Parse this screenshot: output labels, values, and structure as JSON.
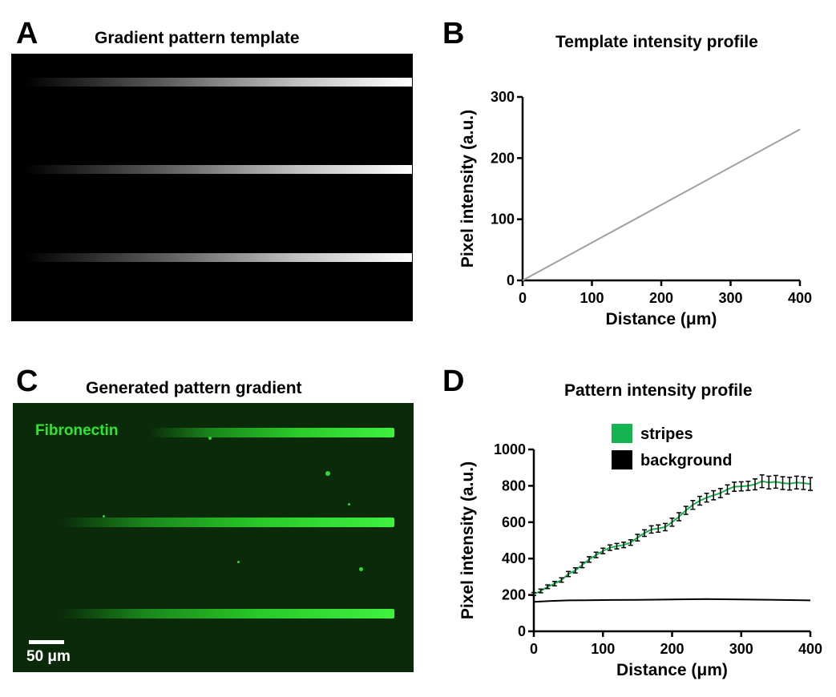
{
  "panelA": {
    "letter": "A",
    "title": "Gradient pattern template",
    "stripes": 3
  },
  "panelB": {
    "letter": "B",
    "title": "Template intensity profile"
  },
  "panelC": {
    "letter": "C",
    "title": "Generated pattern gradient",
    "stain_label": "Fibronectin",
    "scale_label": "50 μm",
    "stripes": 3,
    "colors": {
      "stain": "#2ee82e",
      "background": "#0a2a0a"
    }
  },
  "panelD": {
    "letter": "D",
    "title": "Pattern intensity profile"
  },
  "chart_data": [
    {
      "type": "line",
      "title": "Template intensity profile",
      "xlabel": "Distance (μm)",
      "ylabel": "Pixel intensity (a.u.)",
      "xlim": [
        0,
        400
      ],
      "ylim": [
        0,
        300
      ],
      "xticks": [
        0,
        100,
        200,
        300,
        400
      ],
      "yticks": [
        0,
        100,
        200,
        300
      ],
      "series": [
        {
          "color": "#a0a0a0",
          "x": [
            0,
            400
          ],
          "y": [
            0,
            247
          ]
        }
      ]
    },
    {
      "type": "line",
      "title": "Pattern intensity profile",
      "xlabel": "Distance (μm)",
      "ylabel": "Pixel intensity (a.u.)",
      "xlim": [
        0,
        400
      ],
      "ylim": [
        0,
        1000
      ],
      "xticks": [
        0,
        100,
        200,
        300,
        400
      ],
      "yticks": [
        0,
        200,
        400,
        600,
        800,
        1000
      ],
      "legend_position": "top-right",
      "series": [
        {
          "name": "stripes",
          "color": "#14b450",
          "x": [
            0,
            10,
            20,
            30,
            40,
            50,
            60,
            70,
            80,
            90,
            100,
            110,
            120,
            130,
            140,
            150,
            160,
            170,
            180,
            190,
            200,
            210,
            220,
            230,
            240,
            250,
            260,
            270,
            280,
            290,
            300,
            310,
            320,
            330,
            340,
            350,
            360,
            370,
            380,
            390,
            400
          ],
          "y": [
            205,
            222,
            245,
            262,
            282,
            315,
            335,
            365,
            395,
            420,
            442,
            460,
            468,
            475,
            488,
            515,
            540,
            560,
            565,
            573,
            600,
            630,
            665,
            695,
            718,
            735,
            748,
            760,
            780,
            795,
            797,
            800,
            808,
            825,
            818,
            822,
            815,
            812,
            818,
            815,
            810
          ],
          "error": [
            8,
            10,
            10,
            12,
            12,
            14,
            14,
            15,
            15,
            15,
            15,
            15,
            15,
            15,
            15,
            18,
            18,
            20,
            20,
            20,
            22,
            22,
            22,
            24,
            24,
            24,
            25,
            25,
            25,
            25,
            25,
            25,
            30,
            35,
            35,
            35,
            35,
            35,
            35,
            35,
            35
          ]
        },
        {
          "name": "background",
          "color": "#000000",
          "x": [
            0,
            25,
            50,
            75,
            100,
            150,
            200,
            250,
            300,
            350,
            400
          ],
          "y": [
            162,
            167,
            170,
            171,
            172,
            173,
            175,
            177,
            175,
            173,
            170
          ]
        }
      ]
    }
  ]
}
